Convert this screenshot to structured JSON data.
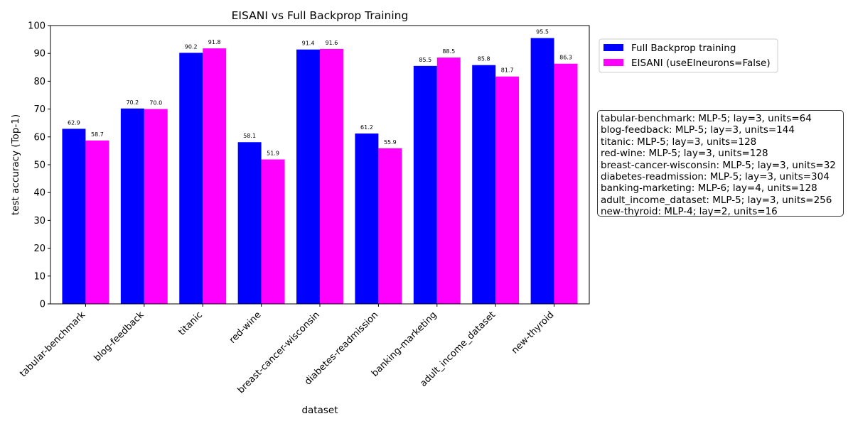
{
  "colors": {
    "series_1": "#0000ff",
    "series_2": "#ff00ff",
    "axis": "#000000",
    "background": "#ffffff"
  },
  "chart_data": {
    "type": "bar",
    "title": "EISANI vs Full Backprop Training",
    "xlabel": "dataset",
    "ylabel": "test accuracy (Top-1)",
    "ylim": [
      0,
      100
    ],
    "yticks": [
      0,
      10,
      20,
      30,
      40,
      50,
      60,
      70,
      80,
      90,
      100
    ],
    "grid": false,
    "legend_position": "top-right, outside plot",
    "categories": [
      "tabular-benchmark",
      "blog-feedback",
      "titanic",
      "red-wine",
      "breast-cancer-wisconsin",
      "diabetes-readmission",
      "banking-marketing",
      "adult_income_dataset",
      "new-thyroid"
    ],
    "series": [
      {
        "name": "Full Backprop training",
        "color": "#0000ff",
        "values": [
          62.9,
          70.2,
          90.2,
          58.1,
          91.4,
          61.2,
          85.5,
          85.8,
          95.5
        ],
        "labels": [
          "62.9",
          "70.2",
          "90.2",
          "58.1",
          "91.4",
          "61.2",
          "85.5",
          "85.8",
          "95.5"
        ]
      },
      {
        "name": "EISANI (useEIneurons=False)",
        "color": "#ff00ff",
        "values": [
          58.7,
          70.0,
          91.8,
          51.9,
          91.6,
          55.9,
          88.5,
          81.7,
          86.3
        ],
        "labels": [
          "58.7",
          "70.0",
          "91.8",
          "51.9",
          "91.6",
          "55.9",
          "88.5",
          "81.7",
          "86.3"
        ]
      }
    ],
    "annotations": [
      "tabular-benchmark: MLP-5; lay=3, units=64",
      "blog-feedback: MLP-5; lay=3, units=144",
      "titanic: MLP-5; lay=3, units=128",
      "red-wine: MLP-5; lay=3, units=128",
      "breast-cancer-wisconsin: MLP-5; lay=3, units=32",
      "diabetes-readmission: MLP-5; lay=3, units=304",
      "banking-marketing: MLP-6; lay=4, units=128",
      "adult_income_dataset: MLP-5; lay=3, units=256",
      "new-thyroid: MLP-4; lay=2, units=16"
    ]
  }
}
